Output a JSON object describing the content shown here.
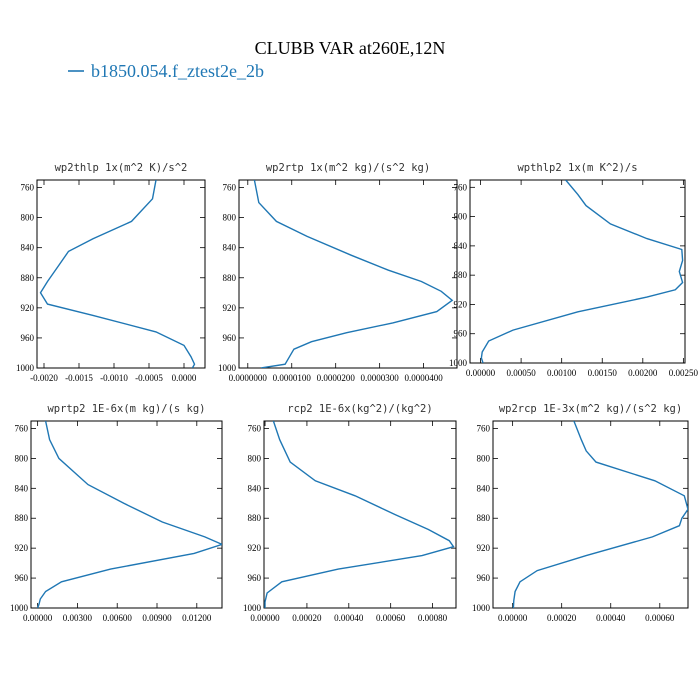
{
  "figure": {
    "title": "CLUBB VAR at260E,12N",
    "legend": {
      "label": "b1850.054.f_ztest2e_2b",
      "color": "#1f77b4"
    }
  },
  "chart_data": [
    {
      "type": "line",
      "title": "wp2thlp  1x(m^2 K)/s^2",
      "ylim": [
        1000,
        750
      ],
      "yticks": [
        "760",
        "800",
        "840",
        "880",
        "920",
        "960",
        "1000"
      ],
      "xlim": [
        -0.0021,
        0.0003
      ],
      "xticks": [
        {
          "v": -0.002,
          "label": "-0.0020"
        },
        {
          "v": -0.0015,
          "label": "-0.0015"
        },
        {
          "v": -0.001,
          "label": "-0.0010"
        },
        {
          "v": -0.0005,
          "label": "-0.0005"
        },
        {
          "v": 0.0,
          "label": "0.0000"
        }
      ],
      "series": [
        {
          "color": "#1f77b4",
          "x": [
            -0.0004,
            -0.00045,
            -0.00075,
            -0.0013,
            -0.00165,
            -0.0018,
            -0.00195,
            -0.00205,
            -0.00195,
            -0.0013,
            -0.0004,
            0.0,
            0.0001,
            0.00015,
            0.00012
          ],
          "y": [
            750,
            775,
            805,
            828,
            845,
            865,
            885,
            900,
            915,
            930,
            952,
            970,
            985,
            995,
            1000
          ]
        }
      ]
    },
    {
      "type": "line",
      "title": "wp2rtp  1x(m^2 kg)/(s^2 kg)",
      "ylim": [
        1000,
        750
      ],
      "yticks": [
        "760",
        "800",
        "840",
        "880",
        "920",
        "960",
        "1000"
      ],
      "xlim": [
        -2e-06,
        4.76e-05
      ],
      "xticks": [
        {
          "v": 0.0,
          "label": "0.0000000"
        },
        {
          "v": 1e-05,
          "label": "0.0000100"
        },
        {
          "v": 2e-05,
          "label": "0.0000200"
        },
        {
          "v": 3e-05,
          "label": "0.0000300"
        },
        {
          "v": 4e-05,
          "label": "0.0000400"
        }
      ],
      "series": [
        {
          "color": "#1f77b4",
          "x": [
            1.5e-06,
            2.5e-06,
            6.5e-06,
            1.35e-05,
            2.35e-05,
            3.2e-05,
            3.95e-05,
            4.4e-05,
            4.65e-05,
            4.3e-05,
            3.3e-05,
            2.25e-05,
            1.45e-05,
            1.05e-05,
            9.5e-06,
            8.5e-06,
            3e-06
          ],
          "y": [
            750,
            780,
            805,
            825,
            850,
            870,
            885,
            898,
            910,
            925,
            940,
            953,
            965,
            975,
            985,
            995,
            1000
          ]
        }
      ]
    },
    {
      "type": "line",
      "title": "wpthlp2  1x(m K^2)/s",
      "ylim": [
        1000,
        750
      ],
      "yticks": [
        "760",
        "800",
        "840",
        "880",
        "920",
        "960",
        "1000"
      ],
      "xlim": [
        -0.00013,
        0.00252
      ],
      "xticks": [
        {
          "v": 0.0,
          "label": "0.00000"
        },
        {
          "v": 0.0005,
          "label": "0.00050"
        },
        {
          "v": 0.001,
          "label": "0.00100"
        },
        {
          "v": 0.0015,
          "label": "0.00150"
        },
        {
          "v": 0.002,
          "label": "0.00200"
        },
        {
          "v": 0.0025,
          "label": "0.00250"
        }
      ],
      "series": [
        {
          "color": "#1f77b4",
          "x": [
            0.00105,
            0.0012,
            0.0013,
            0.0016,
            0.00205,
            0.00248,
            0.00249,
            0.00245,
            0.00249,
            0.0024,
            0.00205,
            0.0012,
            0.0004,
            0.0001,
            2e-05,
            1e-05,
            3e-05
          ],
          "y": [
            750,
            770,
            785,
            810,
            830,
            845,
            860,
            875,
            890,
            900,
            910,
            930,
            955,
            970,
            985,
            993,
            1000
          ]
        }
      ]
    },
    {
      "type": "line",
      "title": "wprtp2  1E-6x(m kg)/(s kg)",
      "ylim": [
        1000,
        750
      ],
      "yticks": [
        "760",
        "800",
        "840",
        "880",
        "920",
        "960",
        "1000"
      ],
      "xlim": [
        -0.0005,
        0.0139
      ],
      "xticks": [
        {
          "v": 0.0,
          "label": "0.00000"
        },
        {
          "v": 0.003,
          "label": "0.00300"
        },
        {
          "v": 0.006,
          "label": "0.00600"
        },
        {
          "v": 0.009,
          "label": "0.00900"
        },
        {
          "v": 0.012,
          "label": "0.01200"
        }
      ],
      "series": [
        {
          "color": "#1f77b4",
          "x": [
            0.0006,
            0.0009,
            0.0016,
            0.0038,
            0.0065,
            0.0094,
            0.0126,
            0.0139,
            0.0118,
            0.0055,
            0.0018,
            0.0006,
            0.0002,
            0.0001,
            0.0
          ],
          "y": [
            750,
            775,
            800,
            835,
            860,
            885,
            905,
            915,
            927,
            948,
            965,
            978,
            988,
            995,
            1000
          ]
        }
      ]
    },
    {
      "type": "line",
      "title": "rcp2  1E-6x(kg^2)/(kg^2)",
      "ylim": [
        1000,
        750
      ],
      "yticks": [
        "760",
        "800",
        "840",
        "880",
        "920",
        "960",
        "1000"
      ],
      "xlim": [
        -5e-06,
        0.000912
      ],
      "xticks": [
        {
          "v": 0.0,
          "label": "0.00000"
        },
        {
          "v": 0.0002,
          "label": "0.00020"
        },
        {
          "v": 0.0004,
          "label": "0.00040"
        },
        {
          "v": 0.0006,
          "label": "0.00060"
        },
        {
          "v": 0.0008,
          "label": "0.00080"
        }
      ],
      "series": [
        {
          "color": "#1f77b4",
          "x": [
            4e-05,
            7e-05,
            0.00012,
            0.00024,
            0.00043,
            0.00062,
            0.00078,
            0.00088,
            0.0009,
            0.00075,
            0.00035,
            8e-05,
            1e-05,
            0.0,
            0.0
          ],
          "y": [
            750,
            775,
            805,
            830,
            850,
            875,
            895,
            910,
            918,
            930,
            948,
            965,
            980,
            992,
            1000
          ]
        }
      ]
    },
    {
      "type": "line",
      "title": "wp2rcp  1E-3x(m^2 kg)/(s^2 kg)",
      "ylim": [
        1000,
        750
      ],
      "yticks": [
        "760",
        "800",
        "840",
        "880",
        "920",
        "960",
        "1000"
      ],
      "xlim": [
        -8e-05,
        0.000715
      ],
      "xticks": [
        {
          "v": 0.0,
          "label": "0.00000"
        },
        {
          "v": 0.0002,
          "label": "0.00020"
        },
        {
          "v": 0.0004,
          "label": "0.00040"
        },
        {
          "v": 0.0006,
          "label": "0.00060"
        }
      ],
      "series": [
        {
          "color": "#1f77b4",
          "x": [
            0.00025,
            0.00028,
            0.0003,
            0.00034,
            0.00058,
            0.0007,
            0.000715,
            0.00069,
            0.00068,
            0.00057,
            0.0003,
            0.0001,
            3e-05,
            1e-05,
            5e-06,
            3e-06
          ],
          "y": [
            750,
            775,
            790,
            805,
            830,
            850,
            868,
            880,
            890,
            905,
            930,
            950,
            965,
            978,
            990,
            1000
          ]
        }
      ]
    }
  ]
}
